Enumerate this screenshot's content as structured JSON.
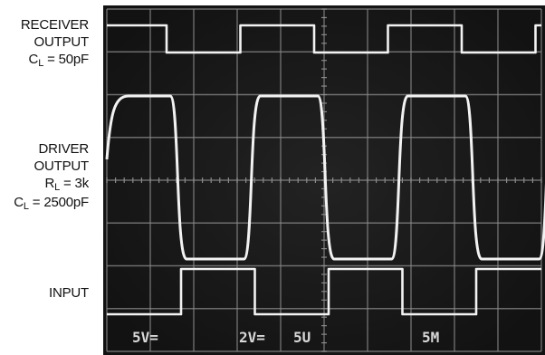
{
  "labels": {
    "receiver": {
      "line1": "RECEIVER",
      "line2": "OUTPUT",
      "cl_main": "C",
      "cl_sub": "L",
      "cl_value": " = 50pF"
    },
    "driver": {
      "line1": "DRIVER",
      "line2": "OUTPUT",
      "rl_main": "R",
      "rl_sub": "L",
      "rl_value": " = 3k",
      "cl_main": "C",
      "cl_sub": "L",
      "cl_value": " = 2500pF"
    },
    "input": {
      "line1": "INPUT"
    }
  },
  "scope": {
    "readouts": [
      "5V=",
      "2V=",
      "5U",
      "5M"
    ],
    "colors": {
      "screen": "#161616",
      "grid": "#8a8a8a",
      "trace": "#f2f2f2",
      "readout": "#d8d8d8"
    }
  }
}
